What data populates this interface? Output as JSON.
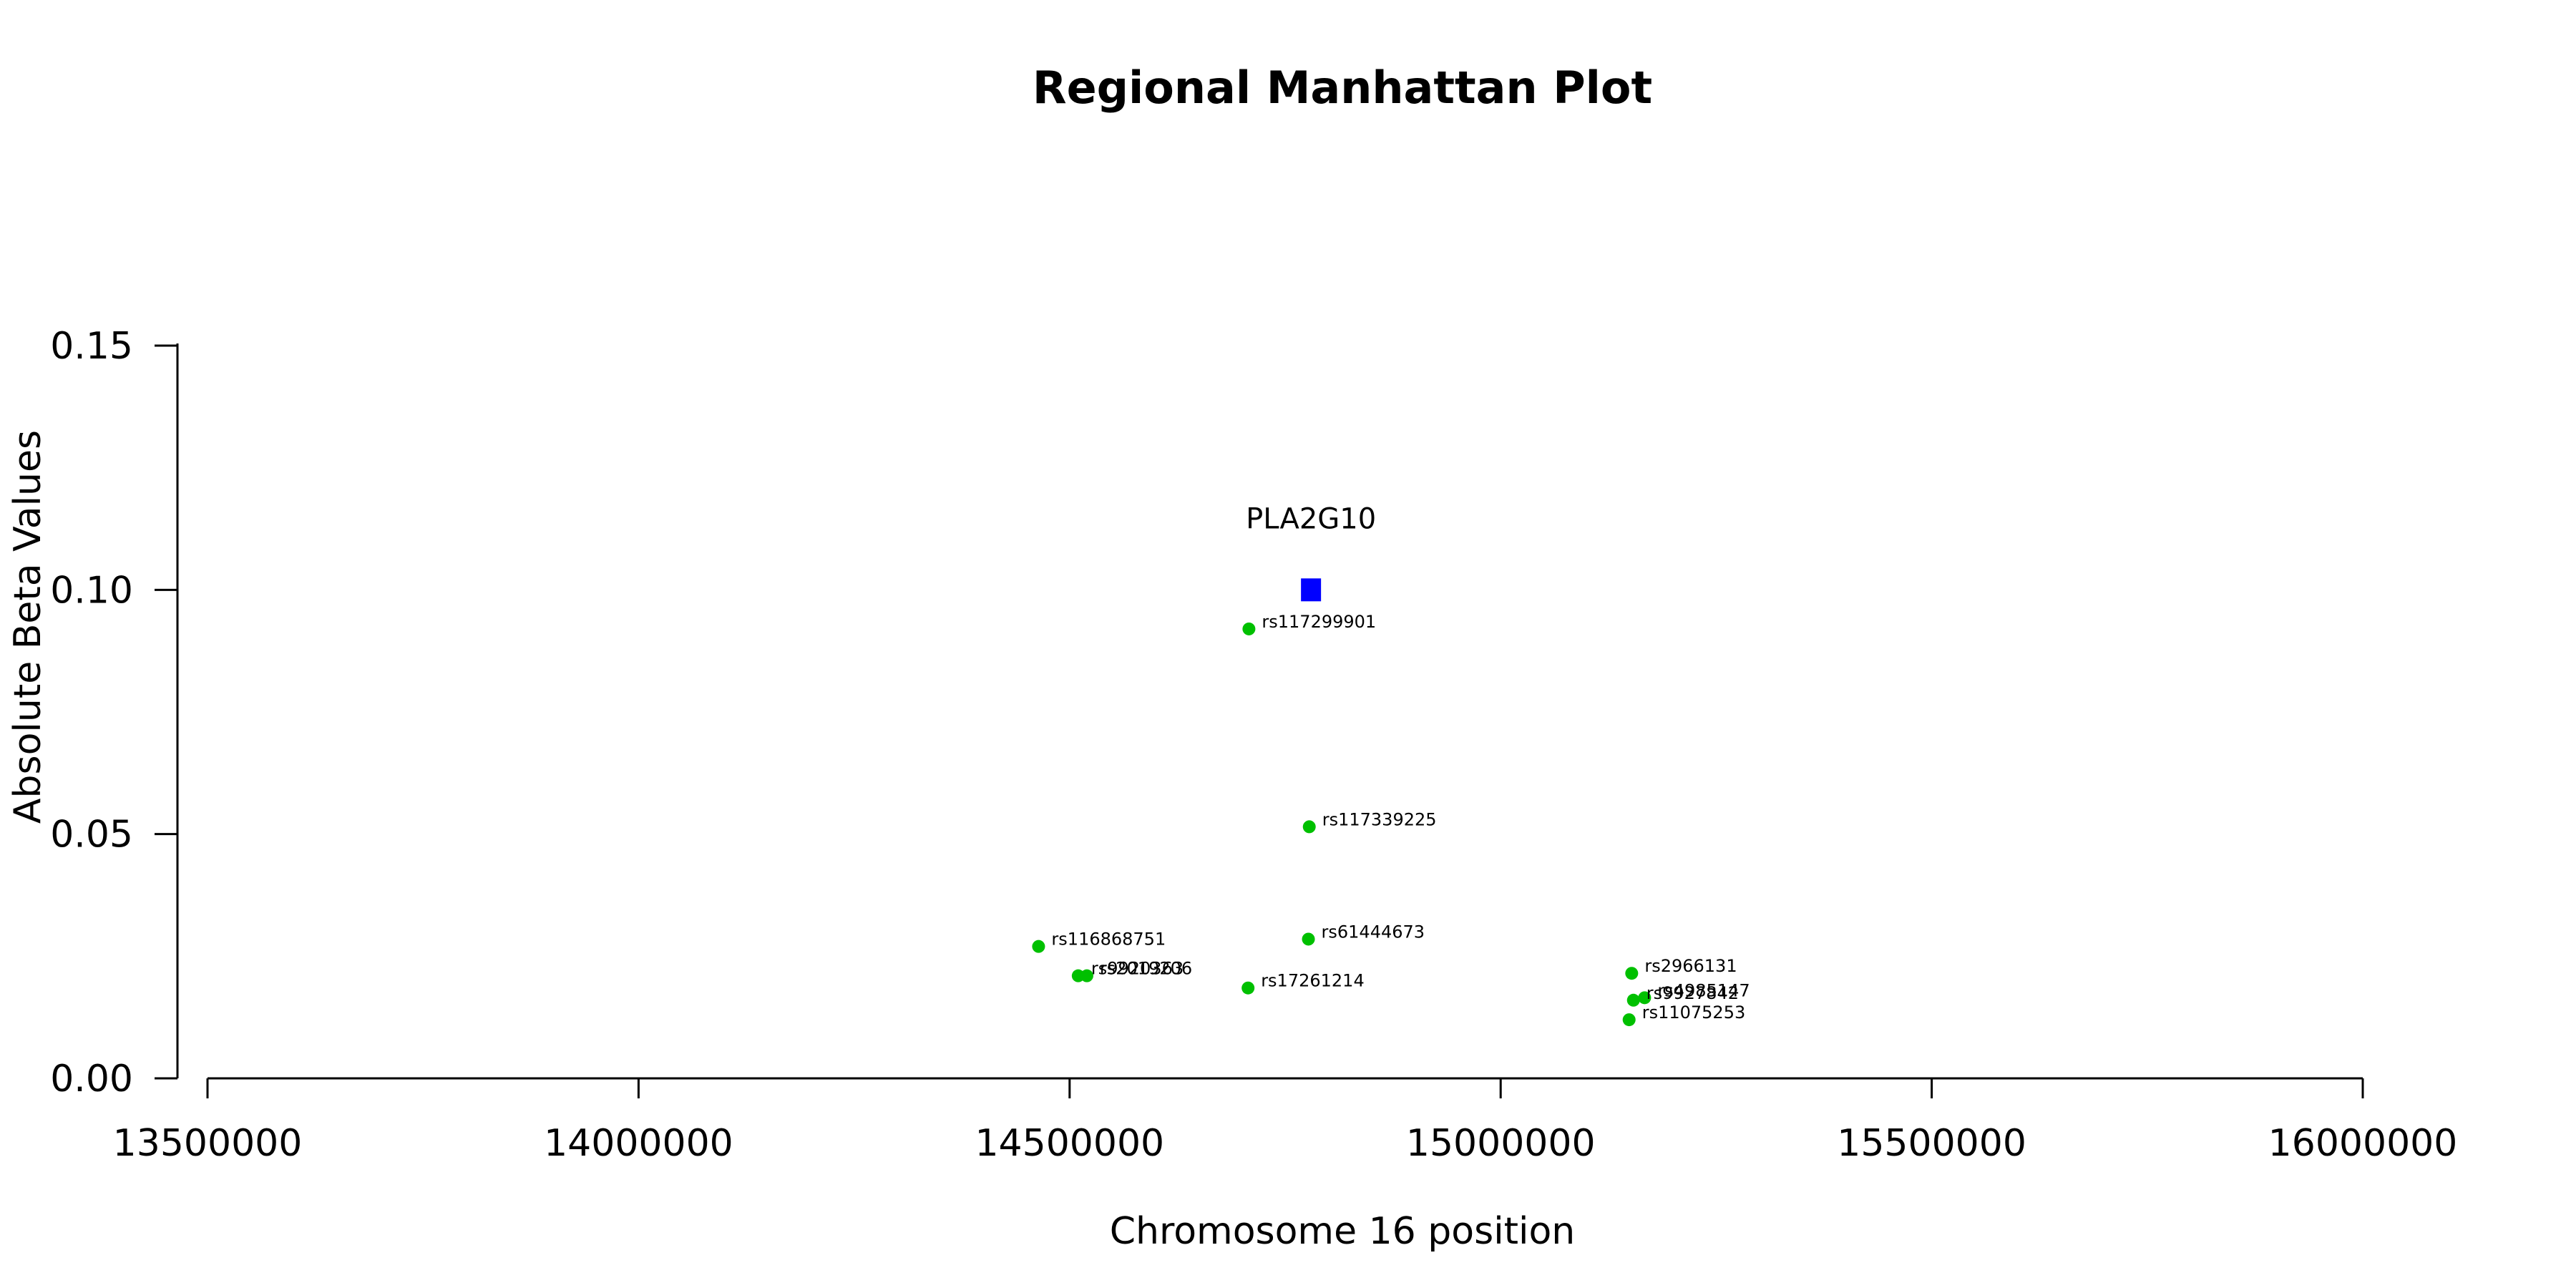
{
  "chart_data": {
    "type": "scatter",
    "title": "Regional Manhattan Plot",
    "xlabel": "Chromosome 16 position",
    "ylabel": "Absolute Beta Values",
    "xlim": [
      13500000,
      16000000
    ],
    "ylim": [
      0,
      0.15
    ],
    "x_ticks": [
      13500000,
      14000000,
      14500000,
      15000000,
      15500000,
      16000000
    ],
    "x_tick_labels": [
      "13500000",
      "14000000",
      "14500000",
      "15000000",
      "15500000",
      "16000000"
    ],
    "y_ticks": [
      0,
      0.05,
      0.1,
      0.15
    ],
    "y_tick_labels": [
      "0.00",
      "0.05",
      "0.10",
      "0.15"
    ],
    "grid": false,
    "gene": {
      "name": "PLA2G10",
      "x": 14780000,
      "y": 0.1,
      "color": "#0000ff",
      "marker": "square"
    },
    "series": [
      {
        "color": "#00c000",
        "points": [
          {
            "label": "rs117299901",
            "x": 14708000,
            "y": 0.092
          },
          {
            "label": "rs117339225",
            "x": 14778000,
            "y": 0.0515
          },
          {
            "label": "rs61444673",
            "x": 14777000,
            "y": 0.0285
          },
          {
            "label": "rs116868751",
            "x": 14464000,
            "y": 0.027
          },
          {
            "label": "rs9920363",
            "x": 14510000,
            "y": 0.021
          },
          {
            "label": "rs2019206",
            "x": 14520000,
            "y": 0.021
          },
          {
            "label": "rs17261214",
            "x": 14707000,
            "y": 0.0185
          },
          {
            "label": "rs2966131",
            "x": 15152000,
            "y": 0.0215
          },
          {
            "label": "rs4985147",
            "x": 15167000,
            "y": 0.0165
          },
          {
            "label": "rs9927842",
            "x": 15154000,
            "y": 0.016
          },
          {
            "label": "rs11075253",
            "x": 15149000,
            "y": 0.012
          }
        ]
      }
    ]
  }
}
